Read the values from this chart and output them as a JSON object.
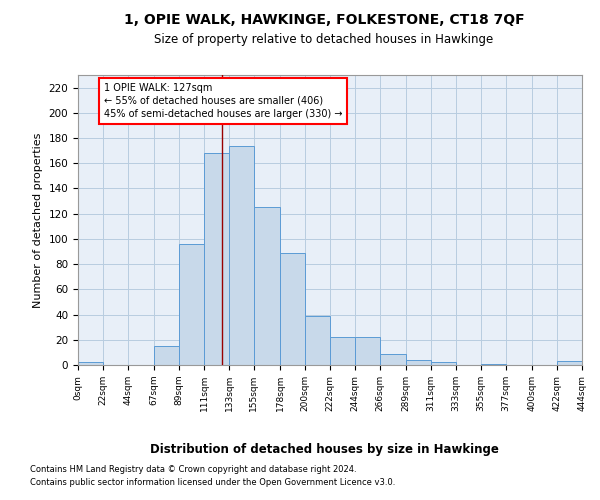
{
  "title": "1, OPIE WALK, HAWKINGE, FOLKESTONE, CT18 7QF",
  "subtitle": "Size of property relative to detached houses in Hawkinge",
  "xlabel": "Distribution of detached houses by size in Hawkinge",
  "ylabel": "Number of detached properties",
  "bar_color": "#c8d9ea",
  "bar_edge_color": "#5b9bd5",
  "grid_color": "#b8cce0",
  "background_color": "#e8eff8",
  "annotation_text": "1 OPIE WALK: 127sqm\n← 55% of detached houses are smaller (406)\n45% of semi-detached houses are larger (330) →",
  "vline_x": 127,
  "vline_color": "#990000",
  "bins": [
    0,
    22,
    44,
    67,
    89,
    111,
    133,
    155,
    178,
    200,
    222,
    244,
    266,
    289,
    311,
    333,
    355,
    377,
    400,
    422,
    444
  ],
  "bin_labels": [
    "0sqm",
    "22sqm",
    "44sqm",
    "67sqm",
    "89sqm",
    "111sqm",
    "133sqm",
    "155sqm",
    "178sqm",
    "200sqm",
    "222sqm",
    "244sqm",
    "266sqm",
    "289sqm",
    "311sqm",
    "333sqm",
    "355sqm",
    "377sqm",
    "400sqm",
    "422sqm",
    "444sqm"
  ],
  "bar_heights": [
    2,
    0,
    0,
    15,
    96,
    168,
    174,
    125,
    89,
    39,
    22,
    22,
    9,
    4,
    2,
    0,
    1,
    0,
    0,
    3
  ],
  "ylim": [
    0,
    230
  ],
  "yticks": [
    0,
    20,
    40,
    60,
    80,
    100,
    120,
    140,
    160,
    180,
    200,
    220
  ],
  "footer1": "Contains HM Land Registry data © Crown copyright and database right 2024.",
  "footer2": "Contains public sector information licensed under the Open Government Licence v3.0."
}
